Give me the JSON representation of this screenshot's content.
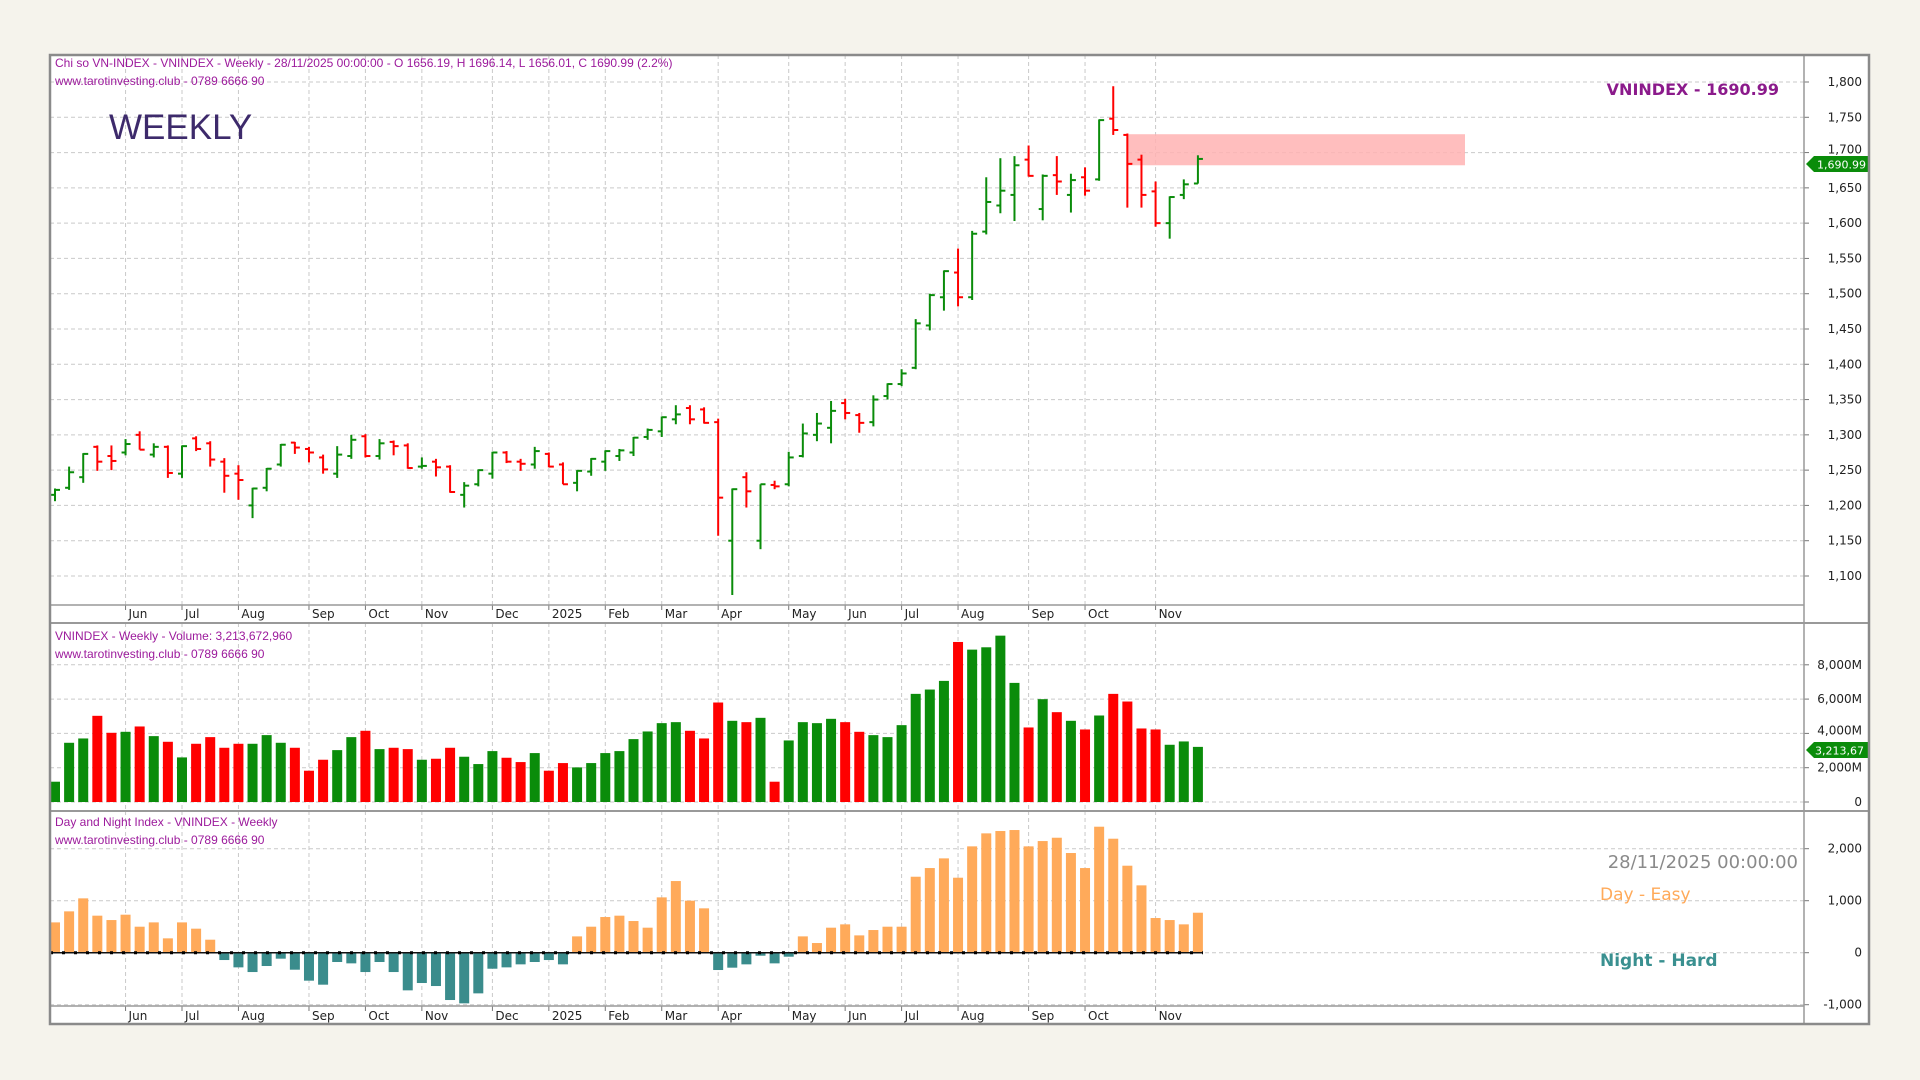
{
  "colors": {
    "background": "#f5f3ec",
    "up": "#0a8c0a",
    "down": "#ff0000",
    "day": "#ffaa5a",
    "night": "#3a8c8c",
    "title": "#9c1a9c",
    "watermark": "#3d2a6b",
    "zone": "#ffb3b3"
  },
  "price_panel": {
    "title": "Chi so VN-INDEX - VNINDEX - Weekly - 28/11/2025 00:00:00 -  O 1656.19, H 1696.14, L 1656.01, C 1690.99  (2.2%)",
    "website": "www.tarotinvesting.club - 0789 6666 90",
    "watermark": "WEEKLY",
    "symbol_label": "VNINDEX - 1690.99",
    "price_tag": "1,690.99",
    "yticks": [
      "1,100",
      "1,150",
      "1,200",
      "1,250",
      "1,300",
      "1,350",
      "1,400",
      "1,450",
      "1,500",
      "1,550",
      "1,600",
      "1,650",
      "1,700",
      "1,750",
      "1,800"
    ]
  },
  "volume_panel": {
    "title": "VNINDEX - Weekly - Volume: 3,213,672,960",
    "website": "www.tarotinvesting.club - 0789 6666 90",
    "volume_tag": "3,213,67",
    "yticks": [
      "0",
      "2,000M",
      "4,000M",
      "6,000M",
      "8,000M"
    ]
  },
  "dni_panel": {
    "title": "Day and Night Index - VNINDEX - Weekly",
    "website": "www.tarotinvesting.club - 0789 6666 90",
    "date_label": "28/11/2025 00:00:00",
    "day_label": "Day - Easy",
    "night_label": "Night - Hard",
    "yticks": [
      "-1,000",
      "0",
      "1,000",
      "2,000"
    ]
  },
  "chart_data": {
    "type": "ohlc",
    "title": "VNINDEX Weekly",
    "ylim": [
      1059,
      1838
    ],
    "price_ticks": [
      1100,
      1150,
      1200,
      1250,
      1300,
      1350,
      1400,
      1450,
      1500,
      1550,
      1600,
      1650,
      1700,
      1750,
      1800
    ],
    "months": [
      {
        "label": "Jun",
        "index": 5
      },
      {
        "label": "Jul",
        "index": 9
      },
      {
        "label": "Aug",
        "index": 13
      },
      {
        "label": "Sep",
        "index": 18
      },
      {
        "label": "Oct",
        "index": 22
      },
      {
        "label": "Nov",
        "index": 26
      },
      {
        "label": "Dec",
        "index": 31
      },
      {
        "label": "2025",
        "index": 35
      },
      {
        "label": "Feb",
        "index": 39
      },
      {
        "label": "Mar",
        "index": 43
      },
      {
        "label": "Apr",
        "index": 47
      },
      {
        "label": "May",
        "index": 52
      },
      {
        "label": "Jun",
        "index": 56
      },
      {
        "label": "Jul",
        "index": 60
      },
      {
        "label": "Aug",
        "index": 64
      },
      {
        "label": "Sep",
        "index": 69
      },
      {
        "label": "Oct",
        "index": 73
      },
      {
        "label": "Nov",
        "index": 78
      }
    ],
    "ohlc": [
      [
        1215,
        1224,
        1206,
        1222
      ],
      [
        1225,
        1255,
        1222,
        1247
      ],
      [
        1240,
        1274,
        1232,
        1273
      ],
      [
        1283,
        1285,
        1249,
        1262
      ],
      [
        1270,
        1285,
        1250,
        1263
      ],
      [
        1275,
        1294,
        1271,
        1287
      ],
      [
        1300,
        1305,
        1279,
        1279
      ],
      [
        1272,
        1288,
        1268,
        1283
      ],
      [
        1283,
        1285,
        1239,
        1246
      ],
      [
        1245,
        1285,
        1239,
        1284
      ],
      [
        1295,
        1298,
        1277,
        1280
      ],
      [
        1288,
        1291,
        1255,
        1265
      ],
      [
        1262,
        1267,
        1218,
        1242
      ],
      [
        1245,
        1257,
        1208,
        1236
      ],
      [
        1200,
        1225,
        1182,
        1224
      ],
      [
        1225,
        1253,
        1220,
        1252
      ],
      [
        1258,
        1287,
        1255,
        1286
      ],
      [
        1289,
        1290,
        1273,
        1282
      ],
      [
        1280,
        1283,
        1261,
        1275
      ],
      [
        1268,
        1272,
        1245,
        1251
      ],
      [
        1245,
        1284,
        1239,
        1272
      ],
      [
        1270,
        1300,
        1266,
        1293
      ],
      [
        1298,
        1301,
        1268,
        1270
      ],
      [
        1270,
        1294,
        1265,
        1288
      ],
      [
        1290,
        1292,
        1271,
        1284
      ],
      [
        1285,
        1288,
        1252,
        1253
      ],
      [
        1255,
        1268,
        1252,
        1256
      ],
      [
        1262,
        1266,
        1241,
        1254
      ],
      [
        1255,
        1257,
        1218,
        1219
      ],
      [
        1215,
        1233,
        1197,
        1228
      ],
      [
        1230,
        1251,
        1227,
        1250
      ],
      [
        1245,
        1276,
        1238,
        1275
      ],
      [
        1275,
        1277,
        1260,
        1262
      ],
      [
        1262,
        1266,
        1249,
        1259
      ],
      [
        1258,
        1283,
        1252,
        1277
      ],
      [
        1273,
        1275,
        1254,
        1255
      ],
      [
        1258,
        1261,
        1230,
        1230
      ],
      [
        1232,
        1250,
        1220,
        1249
      ],
      [
        1248,
        1267,
        1242,
        1266
      ],
      [
        1262,
        1278,
        1249,
        1277
      ],
      [
        1270,
        1280,
        1263,
        1278
      ],
      [
        1275,
        1297,
        1270,
        1296
      ],
      [
        1297,
        1309,
        1293,
        1307
      ],
      [
        1305,
        1326,
        1297,
        1325
      ],
      [
        1322,
        1342,
        1315,
        1329
      ],
      [
        1338,
        1342,
        1315,
        1322
      ],
      [
        1336,
        1339,
        1316,
        1317
      ],
      [
        1318,
        1323,
        1157,
        1211
      ],
      [
        1150,
        1224,
        1073,
        1223
      ],
      [
        1240,
        1247,
        1197,
        1220
      ],
      [
        1150,
        1230,
        1138,
        1230
      ],
      [
        1229,
        1235,
        1223,
        1227
      ],
      [
        1230,
        1276,
        1227,
        1268
      ],
      [
        1270,
        1316,
        1268,
        1302
      ],
      [
        1300,
        1331,
        1291,
        1316
      ],
      [
        1310,
        1348,
        1288,
        1334
      ],
      [
        1345,
        1351,
        1322,
        1331
      ],
      [
        1328,
        1331,
        1303,
        1317
      ],
      [
        1318,
        1356,
        1312,
        1350
      ],
      [
        1355,
        1373,
        1350,
        1372
      ],
      [
        1372,
        1393,
        1369,
        1387
      ],
      [
        1395,
        1464,
        1393,
        1458
      ],
      [
        1455,
        1500,
        1448,
        1498
      ],
      [
        1495,
        1533,
        1476,
        1532
      ],
      [
        1530,
        1564,
        1482,
        1495
      ],
      [
        1495,
        1589,
        1491,
        1585
      ],
      [
        1588,
        1665,
        1584,
        1630
      ],
      [
        1625,
        1692,
        1614,
        1646
      ],
      [
        1640,
        1695,
        1603,
        1682
      ],
      [
        1690,
        1710,
        1666,
        1667
      ],
      [
        1620,
        1669,
        1604,
        1667
      ],
      [
        1668,
        1695,
        1640,
        1659
      ],
      [
        1640,
        1670,
        1615,
        1661
      ],
      [
        1665,
        1679,
        1639,
        1646
      ],
      [
        1662,
        1747,
        1660,
        1746
      ],
      [
        1748,
        1794,
        1725,
        1732
      ],
      [
        1725,
        1727,
        1622,
        1684
      ],
      [
        1690,
        1697,
        1622,
        1640
      ],
      [
        1645,
        1659,
        1595,
        1600
      ],
      [
        1600,
        1638,
        1578,
        1637
      ],
      [
        1640,
        1662,
        1634,
        1655
      ],
      [
        1656.19,
        1696.14,
        1656.01,
        1690.99
      ]
    ],
    "volume_millions": [
      1183,
      3453,
      3705,
      5025,
      4035,
      4093,
      4404,
      3841,
      3511,
      2600,
      3395,
      3783,
      3162,
      3395,
      3395,
      3900,
      3453,
      3162,
      1824,
      2464,
      3025,
      3783,
      4152,
      3084,
      3162,
      3084,
      2464,
      2522,
      3162,
      2639,
      2212,
      2968,
      2580,
      2328,
      2852,
      1824,
      2270,
      2018,
      2270,
      2852,
      2968,
      3667,
      4113,
      4598,
      4656,
      4152,
      3705,
      5801,
      4734,
      4656,
      4908,
      1183,
      3589,
      4656,
      4598,
      4850,
      4656,
      4093,
      3899,
      3783,
      4481,
      6305,
      6557,
      7062,
      9331,
      8885,
      9021,
      9700,
      6945,
      4346,
      5995,
      5238,
      4734,
      4229,
      5044,
      6305,
      5859,
      4287,
      4229,
      3337,
      3531,
      3214
    ],
    "volume_ticks_millions": [
      0,
      2000,
      4000,
      6000,
      8000
    ],
    "volume_ylim_millions": [
      0,
      10440
    ],
    "day_night_index": [
      583,
      795,
      1045,
      712,
      628,
      731,
      500,
      583,
      276,
      583,
      462,
      250,
      -141,
      -282,
      -372,
      -256,
      -115,
      -327,
      -538,
      -615,
      -179,
      -205,
      -372,
      -179,
      -372,
      -724,
      -583,
      -641,
      -910,
      -974,
      -782,
      -308,
      -282,
      -224,
      -179,
      -141,
      -224,
      314,
      500,
      686,
      712,
      609,
      481,
      1064,
      1378,
      1000,
      853,
      -333,
      -288,
      -224,
      -58,
      -205,
      -77,
      314,
      186,
      481,
      545,
      333,
      436,
      500,
      500,
      1461,
      1628,
      1814,
      1442,
      2045,
      2295,
      2340,
      2359,
      2045,
      2147,
      2211,
      1917,
      1628,
      2423,
      2192,
      1673,
      1295,
      667,
      628,
      545,
      769
    ],
    "dni_ticks": [
      -1000,
      0,
      1000,
      2000
    ],
    "dni_ylim": [
      -1025,
      2725
    ],
    "zone": {
      "from": 1682,
      "to": 1726,
      "start_index": 76,
      "end_index": 100
    }
  }
}
